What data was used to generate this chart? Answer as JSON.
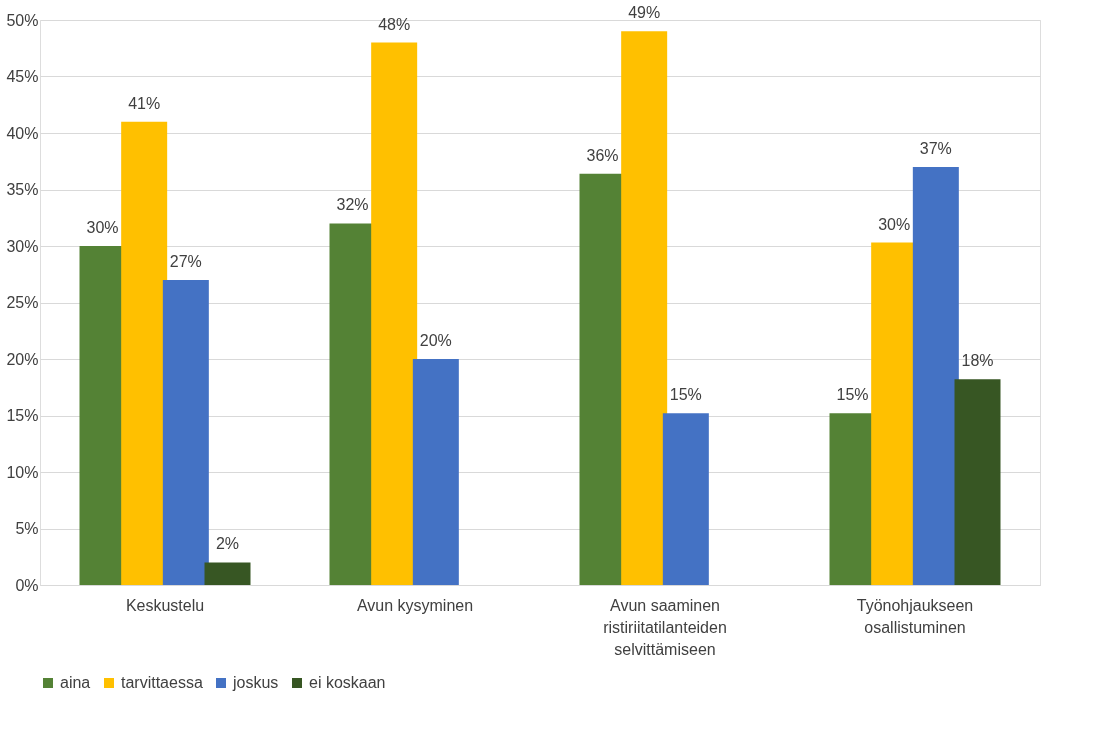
{
  "chart_data": {
    "type": "bar",
    "categories": [
      "Keskustelu",
      "Avun kysyminen",
      "Avun saaminen ristiriitatilanteiden selvittämiseen",
      "Työnohjaukseen osallistuminen"
    ],
    "series": [
      {
        "name": "aina",
        "color": "#548235",
        "values": [
          30,
          32,
          36.4,
          15.2
        ],
        "value_labels": [
          "30%",
          "32%",
          "36%",
          "15%"
        ]
      },
      {
        "name": "tarvittaessa",
        "color": "#ffc000",
        "values": [
          41,
          48,
          49,
          30.3
        ],
        "value_labels": [
          "41%",
          "48%",
          "49%",
          "30%"
        ]
      },
      {
        "name": "joskus",
        "color": "#4472c4",
        "values": [
          27,
          20,
          15.2,
          37
        ],
        "value_labels": [
          "27%",
          "20%",
          "15%",
          "37%"
        ]
      },
      {
        "name": "ei koskaan",
        "color": "#375623",
        "values": [
          2,
          null,
          null,
          18.2
        ],
        "value_labels": [
          "2%",
          null,
          null,
          "18%"
        ]
      }
    ],
    "ylim": [
      0,
      50
    ],
    "yticks": [
      {
        "value": 0,
        "label": "0%"
      },
      {
        "value": 5,
        "label": "5%"
      },
      {
        "value": 10,
        "label": "10%"
      },
      {
        "value": 15,
        "label": "15%"
      },
      {
        "value": 20,
        "label": "20%"
      },
      {
        "value": 25,
        "label": "25%"
      },
      {
        "value": 30,
        "label": "30%"
      },
      {
        "value": 35,
        "label": "35%"
      },
      {
        "value": 40,
        "label": "40%"
      },
      {
        "value": 45,
        "label": "45%"
      },
      {
        "value": 50,
        "label": "50%"
      }
    ],
    "grid": "y",
    "legend": "bottom"
  }
}
